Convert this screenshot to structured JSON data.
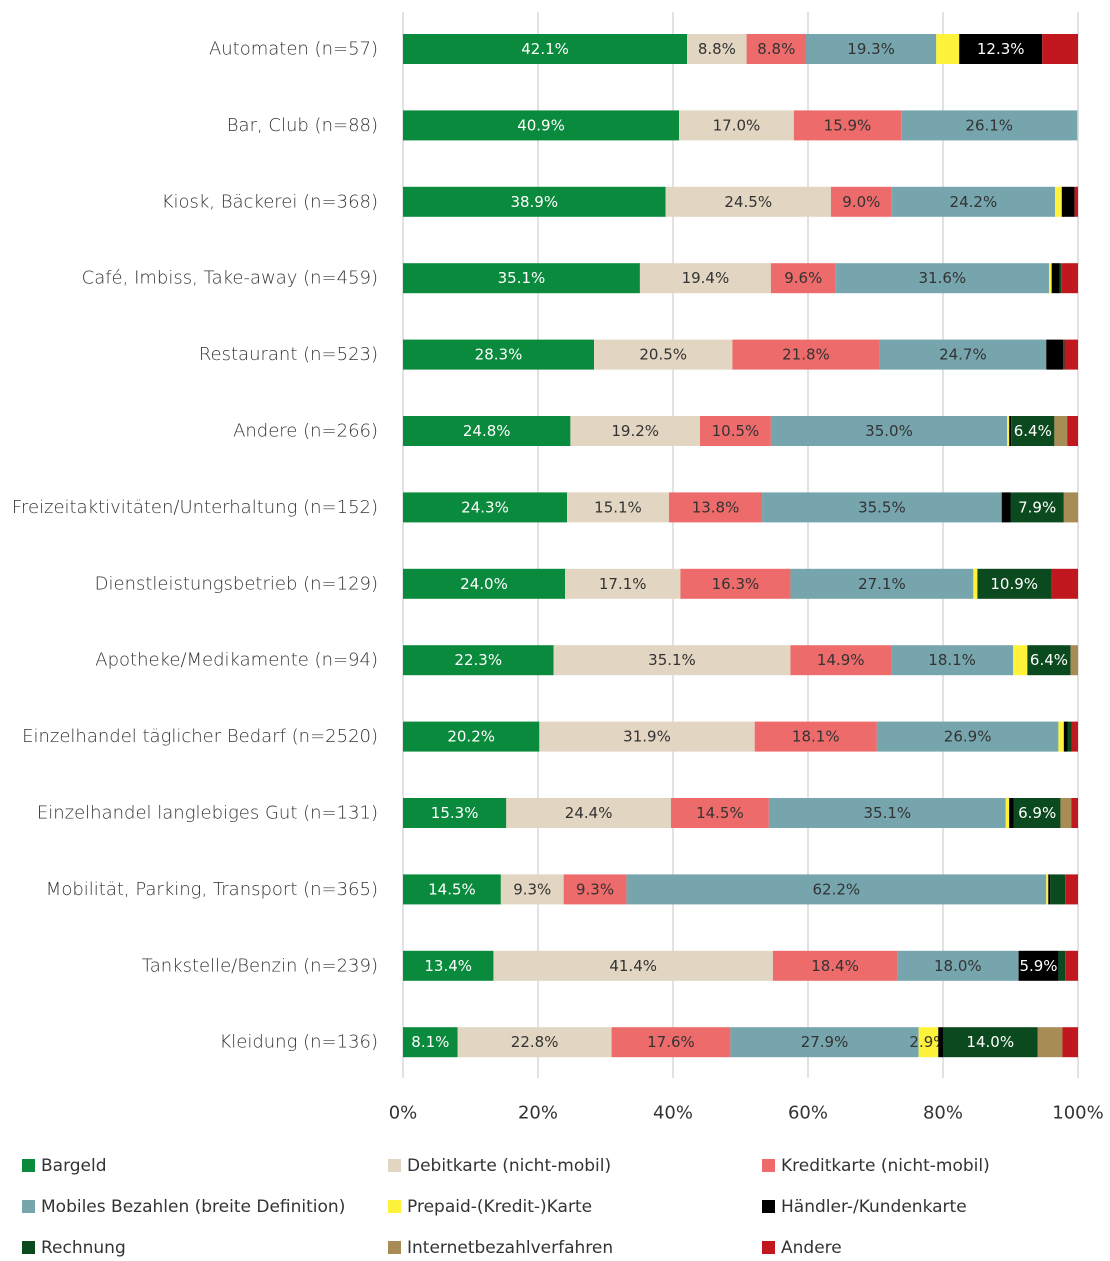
{
  "chart_data": {
    "type": "stacked_barh",
    "categories": [
      "Automaten (n=57)",
      "Bar, Club (n=88)",
      "Kiosk, Bäckerei (n=368)",
      "Café, Imbiss, Take-away (n=459)",
      "Restaurant (n=523)",
      "Andere (n=266)",
      "Freizeitaktivitäten/Unterhaltung (n=152)",
      "Dienstleistungsbetrieb (n=129)",
      "Apotheke/Medikamente (n=94)",
      "Einzelhandel täglicher Bedarf (n=2520)",
      "Einzelhandel langlebiges Gut (n=131)",
      "Mobilität, Parking, Transport (n=365)",
      "Tankstelle/Benzin (n=239)",
      "Kleidung (n=136)"
    ],
    "series": [
      {
        "name": "Bargeld",
        "color": "#0a8a3c",
        "values": [
          42.1,
          40.9,
          38.9,
          35.1,
          28.3,
          24.8,
          24.3,
          24.0,
          22.3,
          20.2,
          15.3,
          14.5,
          13.4,
          8.1
        ],
        "value_labels": [
          "42.1%",
          "40.9%",
          "38.9%",
          "35.1%",
          "28.3%",
          "24.8%",
          "24.3%",
          "24.0%",
          "22.3%",
          "20.2%",
          "15.3%",
          "14.5%",
          "13.4%",
          "8.1%"
        ]
      },
      {
        "name": "Debitkarte (nicht-mobil)",
        "color": "#e2d6c2",
        "values": [
          8.8,
          17.0,
          24.5,
          19.4,
          20.5,
          19.2,
          15.1,
          17.1,
          35.1,
          31.9,
          24.4,
          9.3,
          41.4,
          22.8
        ],
        "value_labels": [
          "8.8%",
          "17.0%",
          "24.5%",
          "19.4%",
          "20.5%",
          "19.2%",
          "15.1%",
          "17.1%",
          "35.1%",
          "31.9%",
          "24.4%",
          "9.3%",
          "41.4%",
          "22.8%"
        ]
      },
      {
        "name": "Kreditkarte (nicht-mobil)",
        "color": "#ee6b6b",
        "values": [
          8.8,
          15.9,
          9.0,
          9.6,
          21.8,
          10.5,
          13.8,
          16.3,
          14.9,
          18.1,
          14.5,
          9.3,
          18.4,
          17.6
        ],
        "value_labels": [
          "8.8%",
          "15.9%",
          "9.0%",
          "9.6%",
          "21.8%",
          "10.5%",
          "13.8%",
          "16.3%",
          "14.9%",
          "18.1%",
          "14.5%",
          "9.3%",
          "18.4%",
          "17.6%"
        ]
      },
      {
        "name": "Mobiles Bezahlen (breite Definition)",
        "color": "#76a5ae",
        "values": [
          19.3,
          26.1,
          24.2,
          31.6,
          24.7,
          35.0,
          35.5,
          27.1,
          18.1,
          26.9,
          35.1,
          62.2,
          18.0,
          27.9
        ],
        "value_labels": [
          "19.3%",
          "26.1%",
          "24.2%",
          "31.6%",
          "24.7%",
          "35.0%",
          "35.5%",
          "27.1%",
          "18.1%",
          "26.9%",
          "35.1%",
          "62.2%",
          "18.0%",
          "27.9%"
        ]
      },
      {
        "name": "Prepaid-(Kredit-)Karte",
        "color": "#fff23a",
        "values": [
          3.4,
          0,
          1.0,
          0.4,
          0,
          0.3,
          0,
          0.6,
          2.1,
          0.8,
          0.5,
          0.3,
          0,
          2.9
        ],
        "value_labels": [
          null,
          null,
          null,
          null,
          null,
          null,
          null,
          null,
          null,
          null,
          null,
          null,
          null,
          "2.9%"
        ]
      },
      {
        "name": "Händler-/Kundenkarte",
        "color": "#000000",
        "values": [
          12.3,
          0,
          1.9,
          1.2,
          2.5,
          0.3,
          1.3,
          0,
          0,
          0.6,
          0.7,
          0.3,
          5.9,
          0.7
        ],
        "value_labels": [
          "12.3%",
          null,
          null,
          null,
          null,
          null,
          null,
          null,
          null,
          null,
          null,
          null,
          "5.9%",
          null
        ]
      },
      {
        "name": "Rechnung",
        "color": "#0b4a1e",
        "values": [
          0,
          0,
          0,
          0.2,
          0.2,
          6.4,
          7.9,
          10.9,
          6.4,
          0.6,
          6.9,
          2.2,
          1.0,
          14.0
        ],
        "value_labels": [
          null,
          null,
          null,
          null,
          null,
          "6.4%",
          "7.9%",
          "10.9%",
          "6.4%",
          null,
          "6.9%",
          null,
          null,
          "14.0%"
        ]
      },
      {
        "name": "Internetbezahlverfahren",
        "color": "#a88c55",
        "values": [
          0,
          0,
          0,
          0,
          0,
          1.9,
          2.1,
          0,
          1.1,
          0,
          1.6,
          0,
          0,
          3.7
        ],
        "value_labels": [
          null,
          null,
          null,
          null,
          null,
          null,
          null,
          null,
          null,
          null,
          null,
          null,
          null,
          null
        ]
      },
      {
        "name": "Andere",
        "color": "#c0181e",
        "values": [
          5.3,
          0,
          0.5,
          2.5,
          2.0,
          1.6,
          0,
          4.0,
          0,
          0.9,
          1.0,
          1.9,
          1.9,
          2.3
        ],
        "value_labels": [
          null,
          null,
          null,
          null,
          null,
          null,
          null,
          null,
          null,
          null,
          null,
          null,
          null,
          null
        ]
      }
    ],
    "xlim": [
      0,
      100
    ],
    "xticks": [
      {
        "value": 0,
        "label": "0%"
      },
      {
        "value": 20,
        "label": "20%"
      },
      {
        "value": 40,
        "label": "40%"
      },
      {
        "value": 60,
        "label": "60%"
      },
      {
        "value": 80,
        "label": "80%"
      },
      {
        "value": 100,
        "label": "100%"
      }
    ],
    "grid": true
  }
}
